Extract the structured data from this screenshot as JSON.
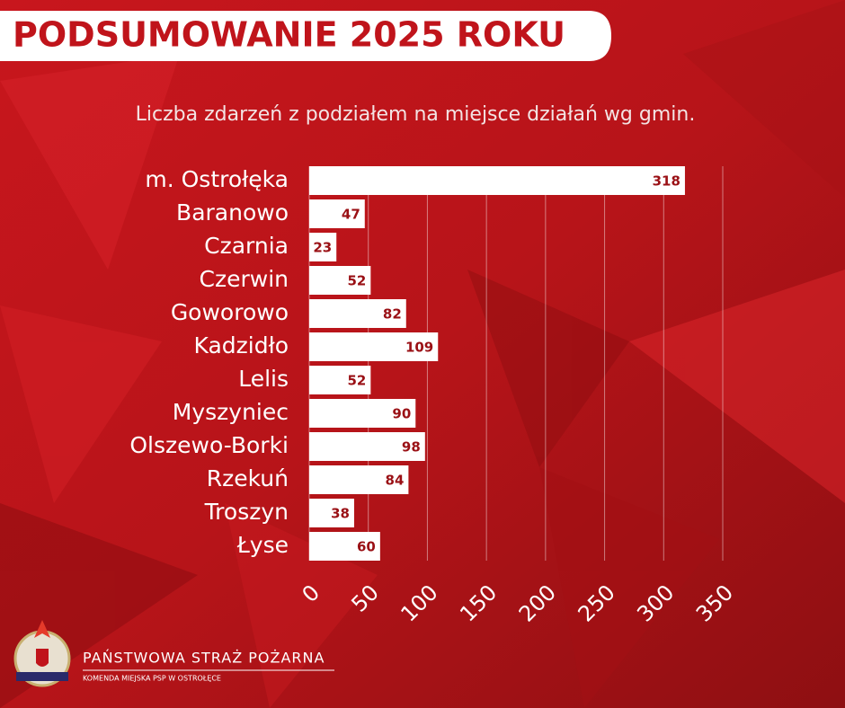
{
  "chart_data": {
    "type": "barh",
    "title": "PODSUMOWANIE 2025 ROKU",
    "subtitle": "Liczba zdarzeń z podziałem na miejsce działań wg gmin.",
    "categories": [
      "m. Ostrołęka",
      "Baranowo",
      "Czarnia",
      "Czerwin",
      "Goworowo",
      "Kadzidło",
      "Lelis",
      "Myszyniec",
      "Olszewo-Borki",
      "Rzekuń",
      "Troszyn",
      "Łyse"
    ],
    "values": [
      318,
      47,
      23,
      52,
      82,
      109,
      52,
      90,
      98,
      84,
      38,
      60
    ],
    "color": "#ffffff",
    "xlim": [
      0,
      350
    ],
    "xticks": [
      0,
      50,
      100,
      150,
      200,
      250,
      300,
      350
    ],
    "grid": true
  },
  "footer": {
    "organization": "PAŃSTWOWA STRAŻ POŻARNA",
    "unit": "KOMENDA MIEJSKA PSP W OSTROŁĘCE"
  }
}
